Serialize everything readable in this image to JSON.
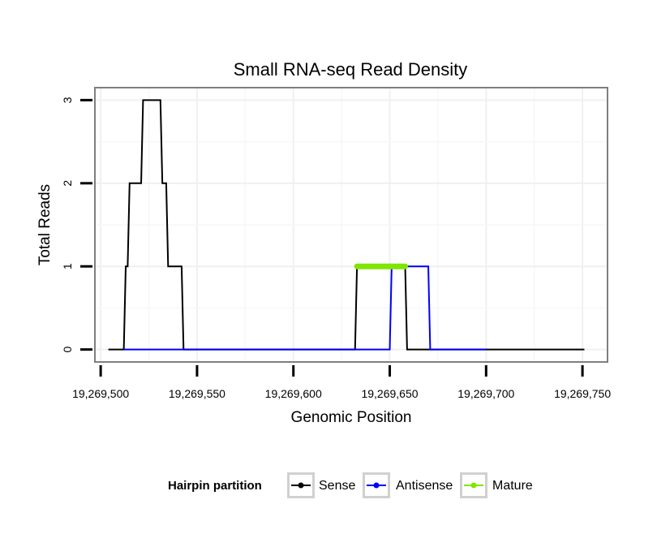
{
  "chart_data": {
    "type": "line",
    "title": "Small RNA-seq Read Density",
    "xlabel": "Genomic Position",
    "ylabel": "Total Reads",
    "xlim": [
      19269497,
      19269763
    ],
    "ylim": [
      -0.15,
      3.15
    ],
    "x_ticks": [
      19269500,
      19269550,
      19269600,
      19269650,
      19269700,
      19269750
    ],
    "x_tick_labels": [
      "19,269,500",
      "19,269,550",
      "19,269,600",
      "19,269,650",
      "19,269,700",
      "19,269,750"
    ],
    "y_ticks": [
      0,
      1,
      2,
      3
    ],
    "y_tick_labels": [
      "0",
      "1",
      "2",
      "3"
    ],
    "grid": true,
    "legend": {
      "title": "Hairpin partition",
      "position": "bottom"
    },
    "series": [
      {
        "name": "Sense",
        "color": "#000000",
        "points": [
          [
            19269504,
            0
          ],
          [
            19269512,
            0
          ],
          [
            19269513,
            1
          ],
          [
            19269514,
            1
          ],
          [
            19269515,
            2
          ],
          [
            19269521,
            2
          ],
          [
            19269522,
            3
          ],
          [
            19269531,
            3
          ],
          [
            19269532,
            2
          ],
          [
            19269534,
            2
          ],
          [
            19269535,
            1
          ],
          [
            19269542,
            1
          ],
          [
            19269543,
            0
          ],
          [
            19269632,
            0
          ],
          [
            19269633,
            1
          ],
          [
            19269658,
            1
          ],
          [
            19269659,
            0
          ],
          [
            19269751,
            0
          ]
        ]
      },
      {
        "name": "Antisense",
        "color": "#0000ff",
        "points": [
          [
            19269512,
            0
          ],
          [
            19269650,
            0
          ],
          [
            19269651,
            1
          ],
          [
            19269670,
            1
          ],
          [
            19269671,
            0
          ],
          [
            19269700,
            0
          ]
        ]
      },
      {
        "name": "Mature",
        "color": "#7fe600",
        "points": [
          [
            19269633,
            1
          ],
          [
            19269658,
            1
          ]
        ]
      }
    ]
  }
}
